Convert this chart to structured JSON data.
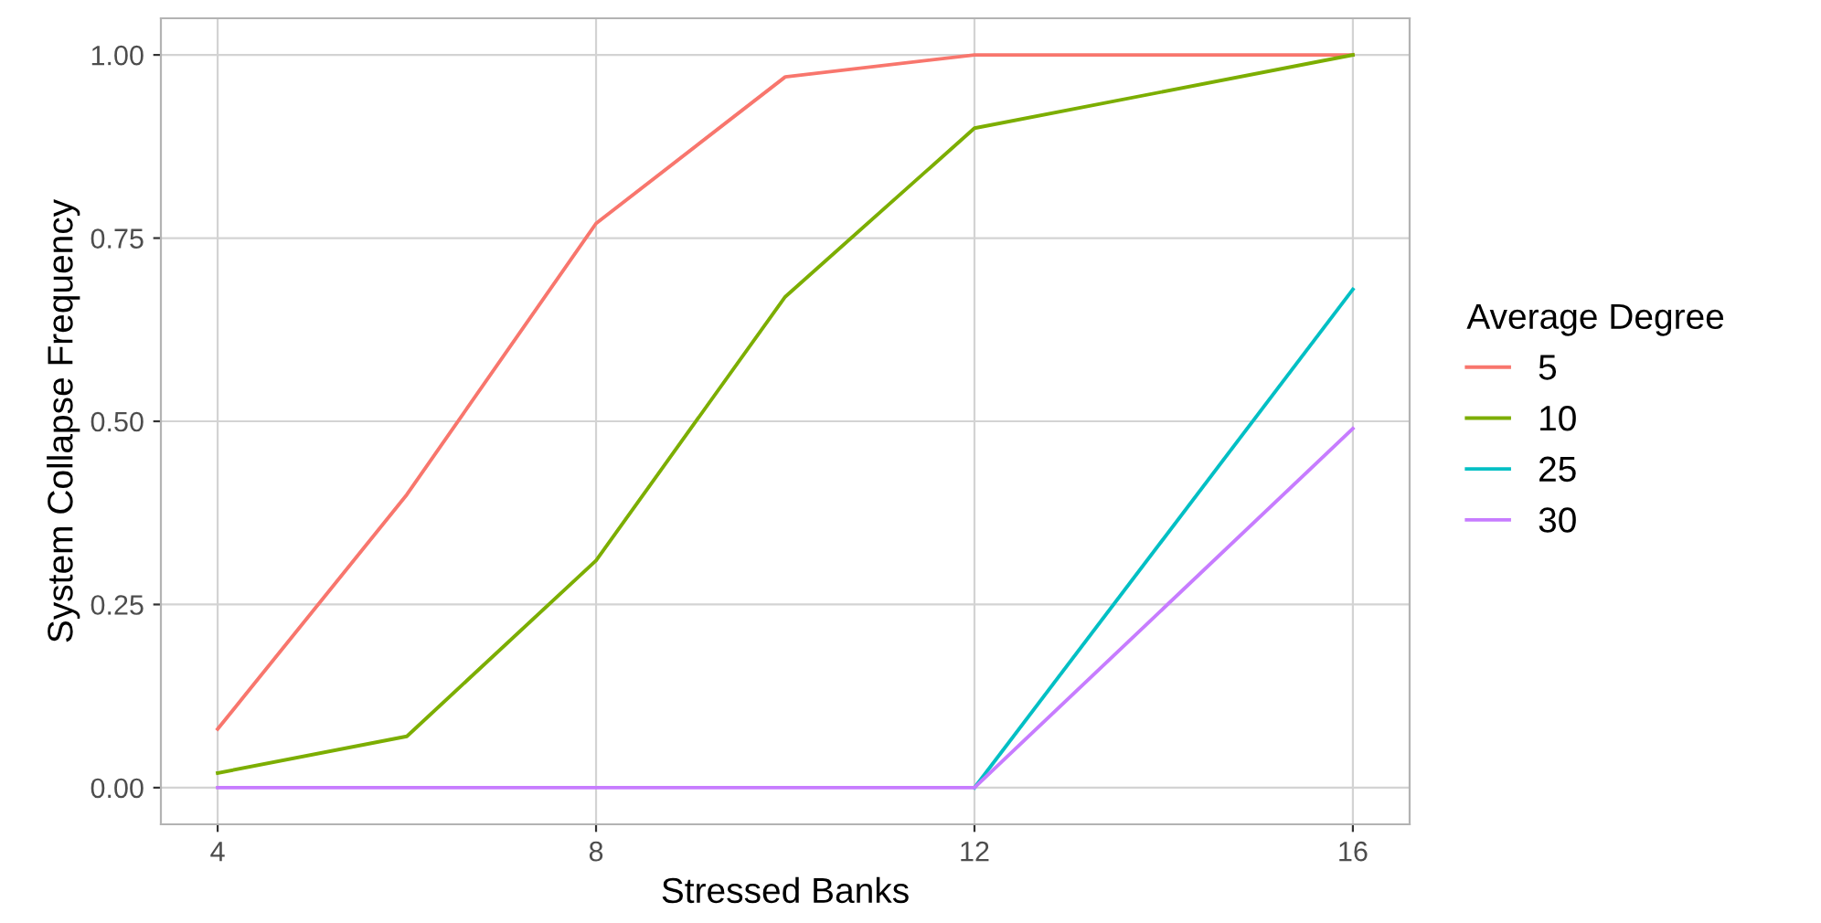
{
  "chart_data": {
    "type": "line",
    "xlabel": "Stressed Banks",
    "ylabel": "System Collapse Frequency",
    "legend_title": "Average Degree",
    "x": [
      4,
      6,
      8,
      10,
      12,
      16
    ],
    "series": [
      {
        "name": "5",
        "color": "#f8766d",
        "values": [
          0.08,
          0.4,
          0.77,
          0.97,
          1.0,
          1.0
        ]
      },
      {
        "name": "10",
        "color": "#7cae00",
        "values": [
          0.02,
          0.07,
          0.31,
          0.67,
          0.9,
          1.0
        ]
      },
      {
        "name": "25",
        "color": "#00bfc4",
        "values": [
          null,
          null,
          null,
          null,
          0,
          0.68
        ]
      },
      {
        "name": "30",
        "color": "#c77cff",
        "values": [
          0,
          0,
          0,
          0,
          0,
          0.49
        ]
      }
    ],
    "xlim": [
      3.4,
      16.6
    ],
    "ylim": [
      -0.05,
      1.05
    ],
    "xticks": [
      4,
      8,
      12,
      16
    ],
    "yticks": [
      {
        "value": 0,
        "label": "0.00"
      },
      {
        "value": 0.25,
        "label": "0.25"
      },
      {
        "value": 0.5,
        "label": "0.50"
      },
      {
        "value": 0.75,
        "label": "0.75"
      },
      {
        "value": 1.0,
        "label": "1.00"
      }
    ],
    "grid": true,
    "legend": "right",
    "marker": "none",
    "line_style": "solid"
  }
}
